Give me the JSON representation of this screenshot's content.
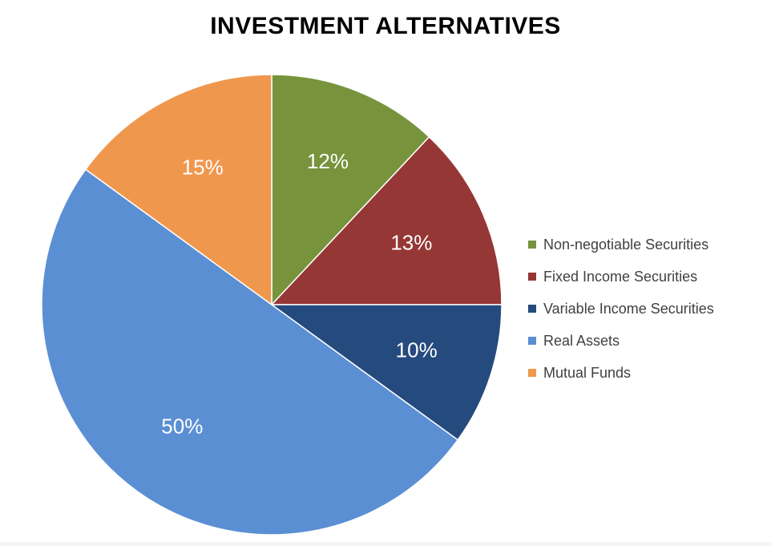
{
  "chart_data": {
    "type": "pie",
    "title": "INVESTMENT ALTERNATIVES",
    "categories": [
      "Non-negotiable Securities",
      "Fixed Income Securities",
      "Variable Income Securities",
      "Real Assets",
      "Mutual Funds"
    ],
    "values": [
      12,
      13,
      10,
      50,
      15
    ],
    "data_labels": [
      "12%",
      "13%",
      "10%",
      "50%",
      "15%"
    ],
    "colors": [
      "#77933C",
      "#953735",
      "#254A7E",
      "#5B8FD3",
      "#F0974E"
    ],
    "start_angle_deg": 0,
    "direction": "clockwise",
    "legend_position": "right"
  }
}
